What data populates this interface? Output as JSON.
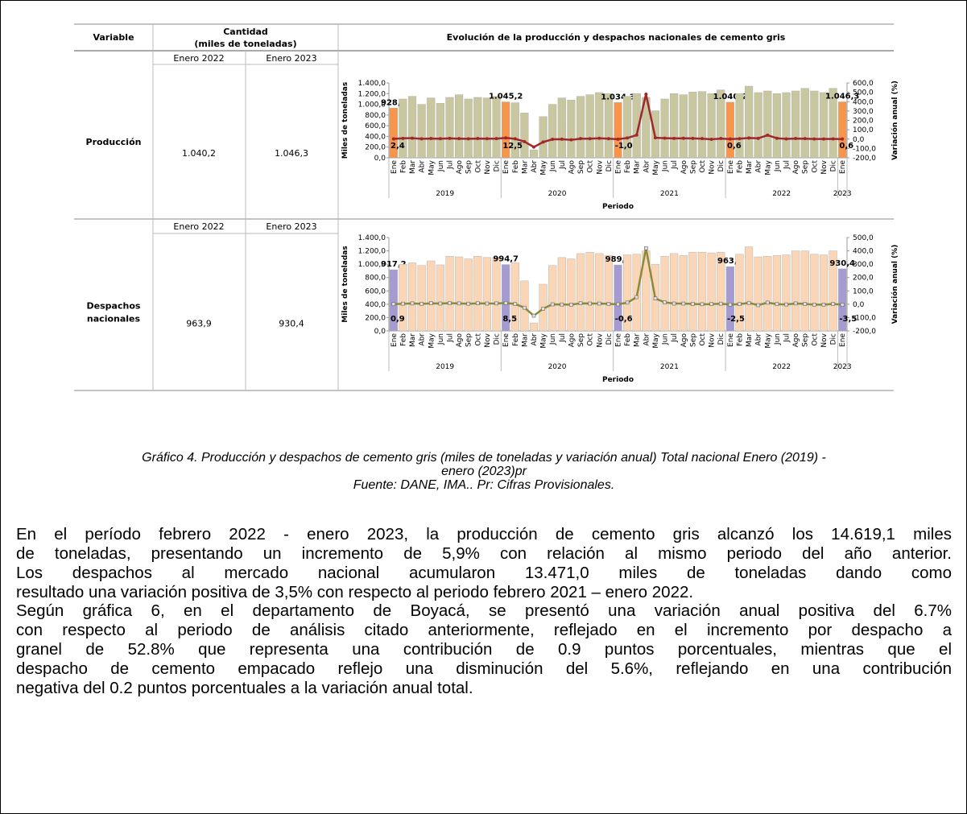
{
  "table": {
    "headers": {
      "variable": "Variable",
      "quantity": [
        "Cantidad",
        "(miles de toneladas)"
      ],
      "chart_title": "Evolución de la producción y despachos nacionales de cemento gris"
    },
    "rows": [
      {
        "variable": [
          "Producción"
        ],
        "col_a": "Enero 2022",
        "col_b": "Enero 2023",
        "value_a": "1.040,2",
        "value_b": "1.046,3",
        "chart": {
          "type": "bar",
          "y_label": "Miles de toneladas",
          "y2_label": "Variación anual (%)",
          "x_label": "Periodo",
          "categories": [
            "Ene",
            "Feb",
            "Mar",
            "Abr",
            "May",
            "Jun",
            "Jul",
            "Ago",
            "Sep",
            "Oct",
            "Nov",
            "Dic",
            "Ene",
            "Feb",
            "Mar",
            "Abr",
            "May",
            "Jun",
            "Jul",
            "Ago",
            "Sep",
            "Oct",
            "Nov",
            "Dic",
            "Ene",
            "Feb",
            "Mar",
            "Abr",
            "May",
            "Jun",
            "Jul",
            "Ago",
            "Sep",
            "Oct",
            "Nov",
            "Dic",
            "Ene",
            "Feb",
            "Mar",
            "Abr",
            "May",
            "Jun",
            "Jul",
            "Ago",
            "Sep",
            "Oct",
            "Nov",
            "Dic",
            "Ene"
          ],
          "groups": [
            "2019",
            "2020",
            "2021",
            "2022",
            "2023"
          ],
          "ylim": [
            0,
            1400
          ],
          "yticks": [
            {
              "value": 0,
              "label": "0,0"
            },
            {
              "value": 200,
              "label": "200,0"
            },
            {
              "value": 400,
              "label": "400,0"
            },
            {
              "value": 600,
              "label": "600,0"
            },
            {
              "value": 800,
              "label": "800,0"
            },
            {
              "value": 1000,
              "label": "1.000,0"
            },
            {
              "value": 1200,
              "label": "1.200,0"
            },
            {
              "value": 1400,
              "label": "1.400,0"
            }
          ],
          "y2lim": [
            -200,
            600
          ],
          "y2ticks": [
            {
              "value": -200,
              "label": "-200,0"
            },
            {
              "value": -100,
              "label": "-100,0"
            },
            {
              "value": 0,
              "label": "0,0"
            },
            {
              "value": 100,
              "label": "100,0"
            },
            {
              "value": 200,
              "label": "200,0"
            },
            {
              "value": 300,
              "label": "300,0"
            },
            {
              "value": 400,
              "label": "400,0"
            },
            {
              "value": 500,
              "label": "500,0"
            },
            {
              "value": 600,
              "label": "600,0"
            }
          ],
          "series": [
            {
              "color": "#c9c79f",
              "highlight_color": "#f7954a",
              "values": [
                928.8,
                1100,
                1150,
                1000,
                1120,
                1020,
                1130,
                1180,
                1100,
                1130,
                1120,
                1150,
                1045.2,
                1030,
                840,
                150,
                770,
                1000,
                1120,
                1080,
                1150,
                1180,
                1220,
                1200,
                1034.3,
                1150,
                1200,
                1130,
                880,
                1100,
                1200,
                1180,
                1230,
                1240,
                1200,
                1270,
                1040.2,
                1200,
                1340,
                1220,
                1250,
                1200,
                1220,
                1250,
                1300,
                1250,
                1220,
                1300,
                1046.3
              ],
              "value_labels": [
                "928,8",
                null,
                null,
                null,
                null,
                null,
                null,
                null,
                null,
                null,
                null,
                null,
                "1.045,2",
                null,
                null,
                null,
                null,
                null,
                null,
                null,
                null,
                null,
                null,
                null,
                "1.034,3",
                null,
                null,
                null,
                null,
                null,
                null,
                null,
                null,
                null,
                null,
                null,
                "1.040,2",
                null,
                null,
                null,
                null,
                null,
                null,
                null,
                null,
                null,
                null,
                null,
                "1.046,3"
              ]
            },
            {
              "type": "line",
              "axis": "y2",
              "color": "#a0282a",
              "marker": "circle",
              "values": [
                2.4,
                8,
                10,
                3,
                6,
                4,
                7,
                5,
                3,
                6,
                4,
                5,
                12.5,
                3,
                -27,
                -85,
                -31,
                -2,
                -1,
                -8,
                5,
                4,
                9,
                4,
                -1.0,
                12,
                43,
                480,
                14,
                10,
                7,
                9,
                7,
                5,
                -2,
                6,
                0.6,
                4,
                12,
                8,
                42,
                9,
                2,
                6,
                5,
                1,
                1,
                2,
                0.6
              ],
              "value_labels": [
                "2,4",
                null,
                null,
                null,
                null,
                null,
                null,
                null,
                null,
                null,
                null,
                null,
                "12,5",
                null,
                null,
                null,
                null,
                null,
                null,
                null,
                null,
                null,
                null,
                null,
                "-1,0",
                null,
                null,
                null,
                null,
                null,
                null,
                null,
                null,
                null,
                null,
                null,
                "0,6",
                null,
                null,
                null,
                null,
                null,
                null,
                null,
                null,
                null,
                null,
                null,
                "0,6"
              ]
            }
          ]
        }
      },
      {
        "variable": [
          "Despachos",
          "nacionales"
        ],
        "col_a": "Enero 2022",
        "col_b": "Enero 2023",
        "value_a": "963,9",
        "value_b": "930,4",
        "chart": {
          "type": "bar",
          "y_label": "Miles de toneladas",
          "y2_label": "Variación anual (%)",
          "x_label": "Periodo",
          "categories": [
            "Ene",
            "Feb",
            "Mar",
            "Abr",
            "May",
            "Jun",
            "Jul",
            "Ago",
            "Sep",
            "Oct",
            "Nov",
            "Dic",
            "Ene",
            "Feb",
            "Mar",
            "Abr",
            "May",
            "Jun",
            "Jul",
            "Ago",
            "Sep",
            "Oct",
            "Nov",
            "Dic",
            "Ene",
            "Feb",
            "Mar",
            "Abr",
            "May",
            "Jun",
            "Jul",
            "Ago",
            "Sep",
            "Oct",
            "Nov",
            "Dic",
            "Ene",
            "Feb",
            "Mar",
            "Abr",
            "May",
            "Jun",
            "Jul",
            "Ago",
            "Sep",
            "Oct",
            "Nov",
            "Dic",
            "Ene"
          ],
          "groups": [
            "2019",
            "2020",
            "2021",
            "2022",
            "2023"
          ],
          "ylim": [
            0,
            1400
          ],
          "yticks": [
            {
              "value": 0,
              "label": "0,0"
            },
            {
              "value": 200,
              "label": "200,0"
            },
            {
              "value": 400,
              "label": "400,0"
            },
            {
              "value": 600,
              "label": "600,0"
            },
            {
              "value": 800,
              "label": "800,0"
            },
            {
              "value": 1000,
              "label": "1.000,0"
            },
            {
              "value": 1200,
              "label": "1.200,0"
            },
            {
              "value": 1400,
              "label": "1.400,0"
            }
          ],
          "y2lim": [
            -200,
            500
          ],
          "y2ticks": [
            {
              "value": -200,
              "label": "-200,0"
            },
            {
              "value": -100,
              "label": "-100,0"
            },
            {
              "value": 0,
              "label": "0,0"
            },
            {
              "value": 100,
              "label": "100,0"
            },
            {
              "value": 200,
              "label": "200,0"
            },
            {
              "value": 300,
              "label": "300,0"
            },
            {
              "value": 400,
              "label": "400,0"
            },
            {
              "value": 500,
              "label": "500,0"
            }
          ],
          "series": [
            {
              "color": "#fbd6b6",
              "highlight_color": "#a69bd0",
              "values": [
                917.2,
                1000,
                1020,
                980,
                1050,
                990,
                1120,
                1110,
                1080,
                1120,
                1100,
                1100,
                994.7,
                1020,
                750,
                120,
                700,
                980,
                1100,
                1080,
                1160,
                1180,
                1160,
                1130,
                989.1,
                1140,
                1150,
                1200,
                1000,
                1120,
                1160,
                1130,
                1180,
                1180,
                1170,
                1180,
                963.9,
                1150,
                1260,
                1110,
                1120,
                1130,
                1140,
                1200,
                1200,
                1150,
                1140,
                1200,
                930.4
              ],
              "value_labels": [
                "917,2",
                null,
                null,
                null,
                null,
                null,
                null,
                null,
                null,
                null,
                null,
                null,
                "994,7",
                null,
                null,
                null,
                null,
                null,
                null,
                null,
                null,
                null,
                null,
                null,
                "989,1",
                null,
                null,
                null,
                null,
                null,
                null,
                null,
                null,
                null,
                null,
                null,
                "963,9",
                null,
                null,
                null,
                null,
                null,
                null,
                null,
                null,
                null,
                null,
                null,
                "930,4"
              ]
            },
            {
              "type": "line",
              "axis": "y2",
              "color": "#8c8a3a",
              "marker": "square",
              "values": [
                0.9,
                4,
                6,
                3,
                7,
                5,
                8,
                6,
                4,
                7,
                5,
                6,
                8.5,
                2,
                -26,
                -86,
                -33,
                -1,
                -2,
                -3,
                7,
                5,
                5,
                3,
                -0.6,
                12,
                53,
                420,
                43,
                14,
                5,
                5,
                2,
                0,
                1,
                4,
                -2.5,
                1,
                10,
                -7,
                12,
                1,
                -2,
                6,
                2,
                -3,
                -3,
                2,
                -3.5
              ],
              "value_labels": [
                "0,9",
                null,
                null,
                null,
                null,
                null,
                null,
                null,
                null,
                null,
                null,
                null,
                "8,5",
                null,
                null,
                null,
                null,
                null,
                null,
                null,
                null,
                null,
                null,
                null,
                "-0,6",
                null,
                null,
                null,
                null,
                null,
                null,
                null,
                null,
                null,
                null,
                null,
                "-2,5",
                null,
                null,
                null,
                null,
                null,
                null,
                null,
                null,
                null,
                null,
                null,
                "-3,5"
              ]
            }
          ]
        }
      }
    ]
  },
  "caption": [
    "Gráfico 4. Producción y despachos de cemento gris (miles de toneladas y variación anual) Total nacional Enero (2019) -",
    "enero (2023)pr",
    "Fuente: DANE, IMA.. Pr: Cifras Provisionales."
  ],
  "paragraphs": [
    [
      "En el período febrero 2022 - enero 2023, la producción de cemento gris alcanzó los 14.619,1 miles",
      "de toneladas, presentando un incremento de 5,9% con relación al mismo periodo del año anterior.",
      "Los despachos al mercado nacional acumularon 13.471,0 miles de toneladas dando como",
      "resultado una variación positiva de 3,5% con respecto al periodo febrero 2021 – enero 2022."
    ],
    [
      "Según gráfica 6, en el departamento de Boyacá, se presentó una variación anual positiva del 6.7%",
      "con respecto al periodo de análisis citado anteriormente, reflejado en el incremento por despacho a",
      "granel de 52.8% que representa una contribución de 0.9 puntos porcentuales, mientras que el",
      "despacho de cemento empacado reflejo una disminución del 5.6%, reflejando en una contribución",
      "negativa del 0.2 puntos porcentuales a la variación anual total."
    ]
  ]
}
